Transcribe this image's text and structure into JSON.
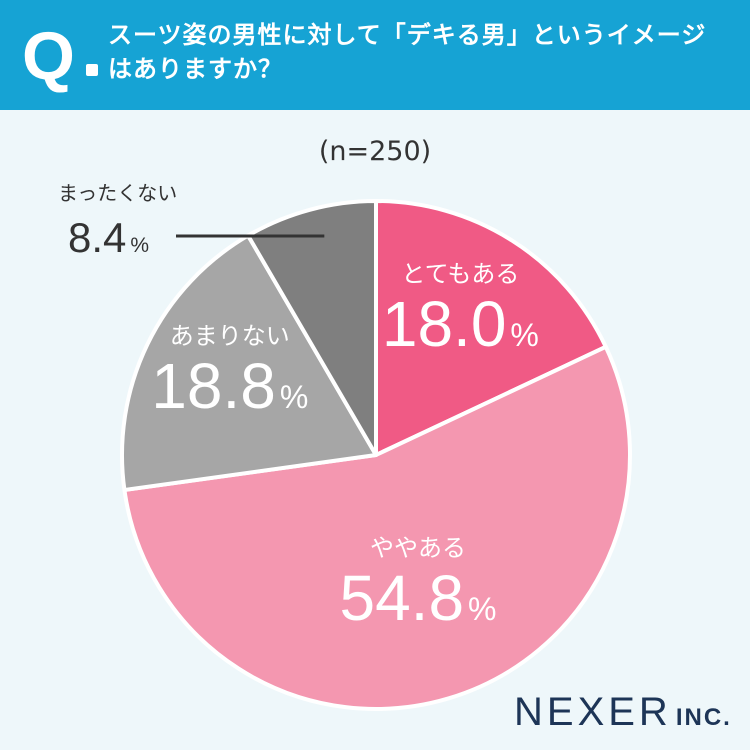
{
  "question": {
    "mark": "Q",
    "line1": "スーツ姿の男性に対して「デキる男」というイメージ",
    "line2": "はありますか？"
  },
  "sample_size": "(n=250)",
  "brand": {
    "name": "NEXER",
    "suffix": "INC."
  },
  "colors": {
    "header": "#16a3d4",
    "background": "#eef7fa",
    "very_much": "#f05a85",
    "somewhat": "#f497b0",
    "not_really": "#a6a6a6",
    "not_at_all": "#7f7f7f"
  },
  "chart_data": {
    "type": "pie",
    "title": "スーツ姿の男性に対して「デキる男」というイメージはありますか？",
    "start": "top",
    "direction": "clockwise",
    "slices": [
      {
        "label": "とてもある",
        "value": 18.0,
        "display": "18.0",
        "unit": "%",
        "color": "#f05a85"
      },
      {
        "label": "ややある",
        "value": 54.8,
        "display": "54.8",
        "unit": "%",
        "color": "#f497b0"
      },
      {
        "label": "あまりない",
        "value": 18.8,
        "display": "18.8",
        "unit": "%",
        "color": "#a6a6a6"
      },
      {
        "label": "まったくない",
        "value": 8.4,
        "display": "8.4",
        "unit": "%",
        "color": "#7f7f7f"
      }
    ]
  }
}
